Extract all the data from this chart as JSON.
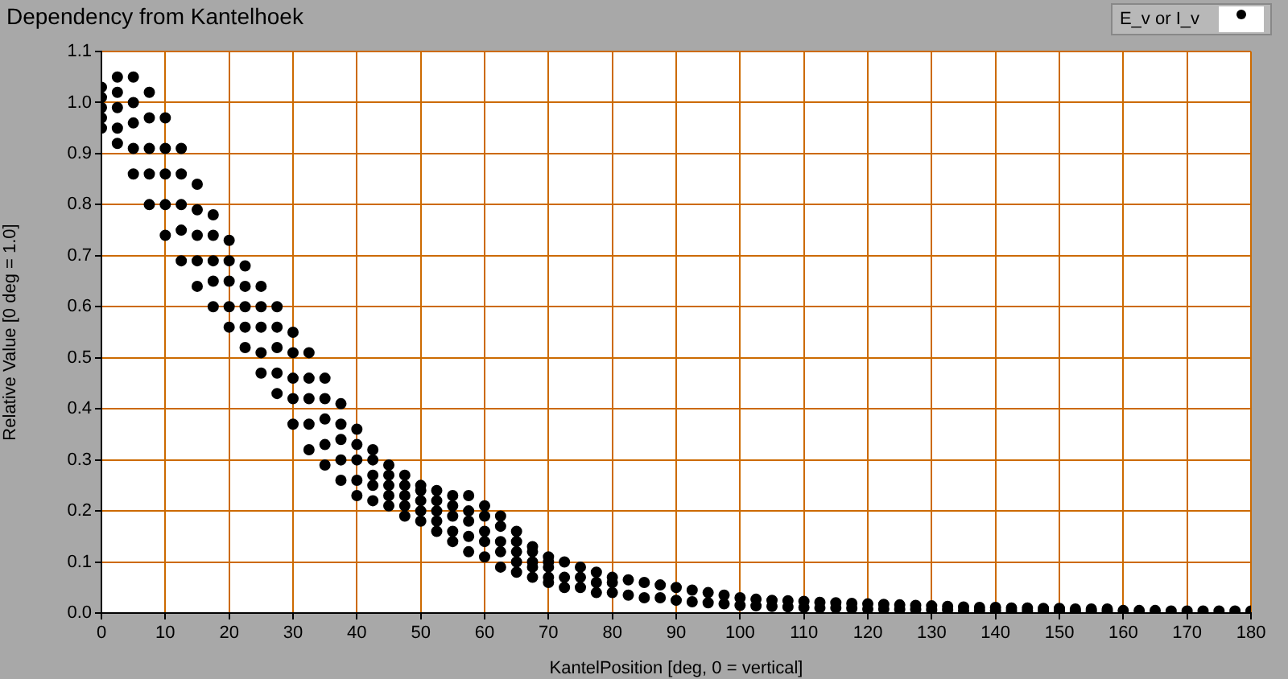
{
  "chart_data": {
    "type": "scatter",
    "title": "Dependency from Kantelhoek",
    "xlabel": "KantelPosition [deg, 0 = vertical]",
    "ylabel": "Relative Value [0 deg = 1.0]",
    "xlim": [
      0,
      180
    ],
    "xticks": [
      0,
      10,
      20,
      30,
      40,
      50,
      60,
      70,
      80,
      90,
      100,
      110,
      120,
      130,
      140,
      150,
      160,
      170,
      180
    ],
    "ylim": [
      0,
      1.1
    ],
    "yticks": [
      {
        "value": 0,
        "label": "0.0"
      },
      0.1,
      0.2,
      0.3,
      0.4,
      0.5,
      0.6,
      0.7,
      0.8,
      0.9,
      {
        "value": 1,
        "label": "1.0"
      },
      1.1
    ],
    "grid": true,
    "legend": "top right",
    "marker": "circle",
    "series": [
      {
        "name": "E_v or I_v",
        "color": "#000000",
        "x": [
          0,
          0,
          0,
          0,
          0,
          2.5,
          2.5,
          2.5,
          2.5,
          2.5,
          5,
          5,
          5,
          5,
          5,
          7.5,
          7.5,
          7.5,
          7.5,
          7.5,
          10,
          10,
          10,
          10,
          10,
          12.5,
          12.5,
          12.5,
          12.5,
          12.5,
          15,
          15,
          15,
          15,
          15,
          17.5,
          17.5,
          17.5,
          17.5,
          17.5,
          20,
          20,
          20,
          20,
          20,
          22.5,
          22.5,
          22.5,
          22.5,
          22.5,
          25,
          25,
          25,
          25,
          25,
          27.5,
          27.5,
          27.5,
          27.5,
          27.5,
          30,
          30,
          30,
          30,
          30,
          32.5,
          32.5,
          32.5,
          32.5,
          32.5,
          35,
          35,
          35,
          35,
          35,
          37.5,
          37.5,
          37.5,
          37.5,
          37.5,
          40,
          40,
          40,
          40,
          40,
          42.5,
          42.5,
          42.5,
          42.5,
          42.5,
          45,
          45,
          45,
          45,
          45,
          47.5,
          47.5,
          47.5,
          47.5,
          47.5,
          50,
          50,
          50,
          50,
          50,
          52.5,
          52.5,
          52.5,
          52.5,
          52.5,
          55,
          55,
          55,
          55,
          55,
          57.5,
          57.5,
          57.5,
          57.5,
          57.5,
          60,
          60,
          60,
          60,
          60,
          62.5,
          62.5,
          62.5,
          62.5,
          62.5,
          65,
          65,
          65,
          65,
          65,
          67.5,
          67.5,
          67.5,
          67.5,
          67.5,
          70,
          70,
          70,
          70,
          70,
          72.5,
          72.5,
          72.5,
          75,
          75,
          75,
          77.5,
          77.5,
          77.5,
          80,
          80,
          80,
          82.5,
          82.5,
          85,
          85,
          87.5,
          87.5,
          90,
          90,
          92.5,
          92.5,
          95,
          95,
          97.5,
          97.5,
          100,
          100,
          102.5,
          102.5,
          105,
          105,
          107.5,
          107.5,
          110,
          110,
          112.5,
          112.5,
          115,
          115,
          117.5,
          117.5,
          120,
          120,
          122.5,
          122.5,
          125,
          125,
          127.5,
          127.5,
          130,
          130,
          132.5,
          132.5,
          135,
          135,
          137.5,
          137.5,
          140,
          140,
          142.5,
          142.5,
          145,
          145,
          147.5,
          147.5,
          150,
          150,
          152.5,
          152.5,
          155,
          155,
          157.5,
          157.5,
          160,
          162.5,
          165,
          167.5,
          170,
          172.5,
          175,
          177.5,
          180
        ],
        "values": [
          0.95,
          0.97,
          0.99,
          1.01,
          1.03,
          0.92,
          0.95,
          0.99,
          1.02,
          1.05,
          0.86,
          0.91,
          0.96,
          1.0,
          1.05,
          0.8,
          0.86,
          0.91,
          0.97,
          1.02,
          0.74,
          0.8,
          0.86,
          0.91,
          0.97,
          0.69,
          0.75,
          0.8,
          0.86,
          0.91,
          0.64,
          0.69,
          0.74,
          0.79,
          0.84,
          0.6,
          0.65,
          0.69,
          0.74,
          0.78,
          0.56,
          0.6,
          0.65,
          0.69,
          0.73,
          0.52,
          0.56,
          0.6,
          0.64,
          0.68,
          0.47,
          0.51,
          0.56,
          0.6,
          0.64,
          0.43,
          0.47,
          0.52,
          0.56,
          0.6,
          0.37,
          0.42,
          0.46,
          0.51,
          0.55,
          0.32,
          0.37,
          0.42,
          0.46,
          0.51,
          0.29,
          0.33,
          0.38,
          0.42,
          0.46,
          0.26,
          0.3,
          0.34,
          0.37,
          0.41,
          0.23,
          0.26,
          0.3,
          0.33,
          0.36,
          0.22,
          0.25,
          0.27,
          0.3,
          0.32,
          0.21,
          0.23,
          0.25,
          0.27,
          0.29,
          0.19,
          0.21,
          0.23,
          0.25,
          0.27,
          0.18,
          0.2,
          0.22,
          0.24,
          0.25,
          0.16,
          0.18,
          0.2,
          0.22,
          0.24,
          0.14,
          0.16,
          0.19,
          0.21,
          0.23,
          0.12,
          0.15,
          0.18,
          0.2,
          0.23,
          0.11,
          0.14,
          0.16,
          0.19,
          0.21,
          0.09,
          0.12,
          0.14,
          0.17,
          0.19,
          0.08,
          0.1,
          0.12,
          0.14,
          0.16,
          0.07,
          0.09,
          0.1,
          0.12,
          0.13,
          0.06,
          0.07,
          0.09,
          0.1,
          0.11,
          0.05,
          0.07,
          0.1,
          0.05,
          0.07,
          0.09,
          0.04,
          0.06,
          0.08,
          0.04,
          0.06,
          0.07,
          0.035,
          0.065,
          0.03,
          0.06,
          0.03,
          0.055,
          0.025,
          0.05,
          0.022,
          0.045,
          0.02,
          0.04,
          0.018,
          0.035,
          0.015,
          0.03,
          0.014,
          0.027,
          0.013,
          0.025,
          0.012,
          0.024,
          0.011,
          0.023,
          0.01,
          0.021,
          0.01,
          0.02,
          0.009,
          0.019,
          0.008,
          0.018,
          0.008,
          0.017,
          0.007,
          0.016,
          0.007,
          0.015,
          0.006,
          0.014,
          0.006,
          0.013,
          0.005,
          0.012,
          0.005,
          0.011,
          0.005,
          0.011,
          0.004,
          0.01,
          0.004,
          0.01,
          0.004,
          0.009,
          0.004,
          0.009,
          0.003,
          0.008,
          0.003,
          0.008,
          0.003,
          0.008,
          0.005,
          0.005,
          0.005,
          0.004,
          0.004,
          0.004,
          0.004,
          0.004,
          0.004
        ]
      }
    ]
  }
}
